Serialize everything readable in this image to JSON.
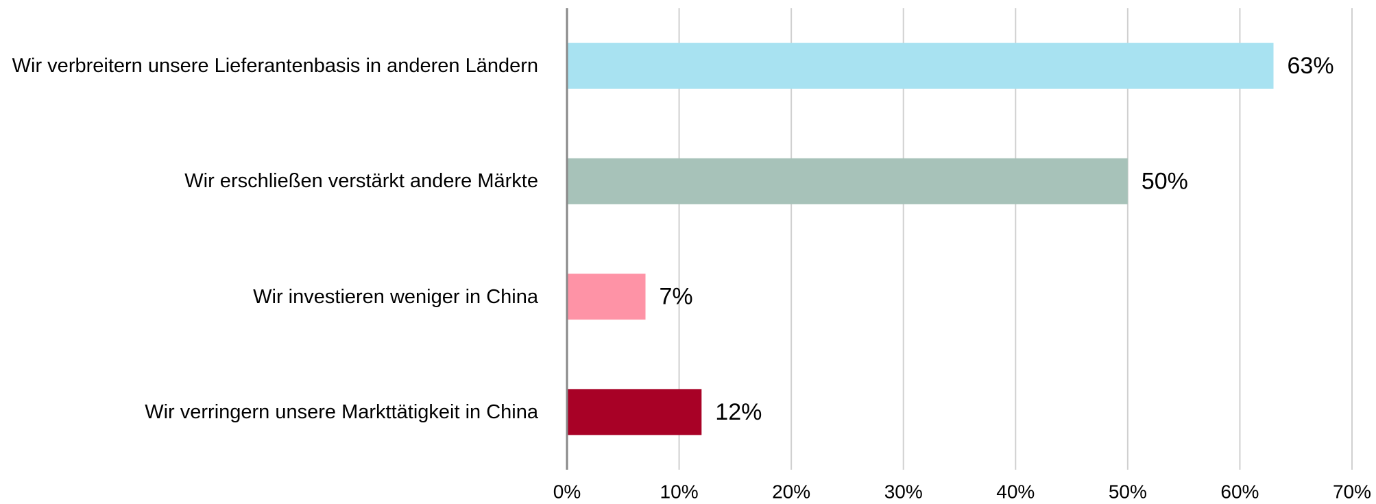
{
  "chart_data": {
    "type": "bar",
    "orientation": "horizontal",
    "categories": [
      "Wir verbreitern unsere Lieferantenbasis in anderen Ländern",
      "Wir erschließen verstärkt andere Märkte",
      "Wir investieren weniger in China",
      "Wir verringern unsere Markttätigkeit in China"
    ],
    "values": [
      63,
      50,
      7,
      12
    ],
    "value_labels": [
      "63%",
      "50%",
      "7%",
      "12%"
    ],
    "colors": [
      "#a8e2f1",
      "#a7c2b9",
      "#fe93a6",
      "#a80126"
    ],
    "xlim": [
      0,
      70
    ],
    "xticks": [
      {
        "value": 0,
        "label": "0%"
      },
      {
        "value": 10,
        "label": "10%"
      },
      {
        "value": 20,
        "label": "20%"
      },
      {
        "value": 30,
        "label": "30%"
      },
      {
        "value": 40,
        "label": "40%"
      },
      {
        "value": 50,
        "label": "50%"
      },
      {
        "value": 60,
        "label": "60%"
      },
      {
        "value": 70,
        "label": "70%"
      }
    ],
    "grid": true
  }
}
